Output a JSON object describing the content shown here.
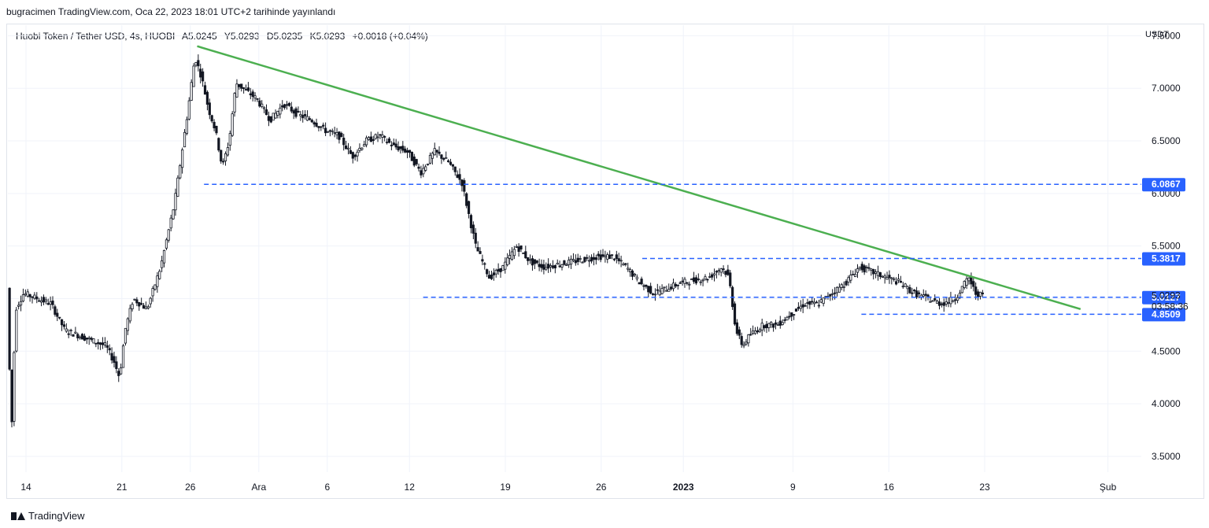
{
  "header": {
    "published": "bugracimen TradingView.com, Oca 22, 2023 18:01 UTC+2 tarihinde yayınlandı"
  },
  "legend": {
    "symbol": "Huobi Token / Tether USD, 4s, HUOBI",
    "open": "A5.0245",
    "high": "Y5.0293",
    "low": "D5.0235",
    "close": "K5.0293",
    "change": "+0.0018 (+0.04%)"
  },
  "footer": {
    "brand": "TradingView"
  },
  "colors": {
    "candle": "#131722",
    "trendline": "#4caf50",
    "level": "#2962ff",
    "grid": "#f0f3fa"
  },
  "chart_data": {
    "type": "candlestick",
    "currency": "USDT",
    "ylim": [
      3.35,
      7.6
    ],
    "y_ticks": [
      "7.5000",
      "7.0000",
      "6.5000",
      "6.0000",
      "5.5000",
      "5.0000",
      "4.5000",
      "4.0000",
      "3.5000"
    ],
    "x_ticks": [
      {
        "label": "14",
        "t": 0
      },
      {
        "label": "21",
        "t": 7
      },
      {
        "label": "26",
        "t": 12
      },
      {
        "label": "Ara",
        "t": 17
      },
      {
        "label": "6",
        "t": 22
      },
      {
        "label": "12",
        "t": 28
      },
      {
        "label": "19",
        "t": 35
      },
      {
        "label": "26",
        "t": 42
      },
      {
        "label": "2023",
        "t": 48,
        "bold": true
      },
      {
        "label": "9",
        "t": 56
      },
      {
        "label": "16",
        "t": 63
      },
      {
        "label": "23",
        "t": 70
      },
      {
        "label": "Şub",
        "t": 79
      }
    ],
    "price_path": [
      [
        -1.2,
        5.1
      ],
      [
        -0.9,
        3.7
      ],
      [
        -0.6,
        4.9
      ],
      [
        0,
        5.05
      ],
      [
        1,
        5.0
      ],
      [
        2,
        4.95
      ],
      [
        3,
        4.7
      ],
      [
        4,
        4.65
      ],
      [
        5,
        4.6
      ],
      [
        6,
        4.55
      ],
      [
        6.6,
        4.4
      ],
      [
        7,
        4.25
      ],
      [
        7.4,
        4.7
      ],
      [
        8,
        5.0
      ],
      [
        9,
        4.9
      ],
      [
        10,
        5.3
      ],
      [
        11,
        5.9
      ],
      [
        12,
        6.8
      ],
      [
        12.5,
        7.3
      ],
      [
        13,
        7.1
      ],
      [
        13.5,
        6.8
      ],
      [
        14,
        6.6
      ],
      [
        14.5,
        6.25
      ],
      [
        15,
        6.5
      ],
      [
        15.5,
        7.05
      ],
      [
        16,
        7.0
      ],
      [
        17,
        6.9
      ],
      [
        18,
        6.7
      ],
      [
        19,
        6.85
      ],
      [
        20,
        6.75
      ],
      [
        21,
        6.7
      ],
      [
        22,
        6.6
      ],
      [
        23,
        6.55
      ],
      [
        24,
        6.35
      ],
      [
        25,
        6.5
      ],
      [
        26,
        6.55
      ],
      [
        27,
        6.45
      ],
      [
        28,
        6.4
      ],
      [
        29,
        6.2
      ],
      [
        30,
        6.4
      ],
      [
        31,
        6.3
      ],
      [
        32,
        6.1
      ],
      [
        33,
        5.5
      ],
      [
        34,
        5.2
      ],
      [
        35,
        5.3
      ],
      [
        36,
        5.5
      ],
      [
        37,
        5.35
      ],
      [
        38,
        5.3
      ],
      [
        40,
        5.35
      ],
      [
        42,
        5.4
      ],
      [
        43,
        5.4
      ],
      [
        44,
        5.3
      ],
      [
        45,
        5.15
      ],
      [
        46,
        5.05
      ],
      [
        47,
        5.1
      ],
      [
        48,
        5.15
      ],
      [
        50,
        5.2
      ],
      [
        51,
        5.3
      ],
      [
        51.5,
        5.2
      ],
      [
        52,
        4.7
      ],
      [
        52.5,
        4.55
      ],
      [
        53,
        4.65
      ],
      [
        54,
        4.75
      ],
      [
        55,
        4.75
      ],
      [
        56,
        4.85
      ],
      [
        57,
        4.95
      ],
      [
        58,
        4.95
      ],
      [
        59,
        5.05
      ],
      [
        60,
        5.15
      ],
      [
        61,
        5.3
      ],
      [
        62,
        5.25
      ],
      [
        63,
        5.2
      ],
      [
        64,
        5.15
      ],
      [
        65,
        5.05
      ],
      [
        66,
        5.0
      ],
      [
        67,
        4.95
      ],
      [
        68,
        5.0
      ],
      [
        69,
        5.2
      ],
      [
        69.5,
        5.05
      ],
      [
        70,
        5.03
      ]
    ],
    "trendline": [
      [
        12.5,
        7.4
      ],
      [
        77,
        4.9
      ]
    ],
    "levels": [
      {
        "value": 6.0867,
        "label": "6.0867",
        "t_start": 13
      },
      {
        "value": 5.3817,
        "label": "5.3817",
        "t_start": 45
      },
      {
        "value": 5.0127,
        "label": "5.0127",
        "t_start": 29
      },
      {
        "value": 4.8509,
        "label": "4.8509",
        "t_start": 61
      }
    ],
    "current_price": {
      "value": 5.0293,
      "label": "5.0293",
      "countdown": "03:58:36"
    }
  }
}
